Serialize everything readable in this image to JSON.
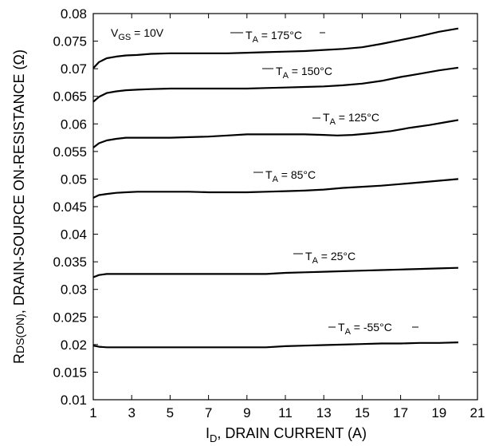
{
  "chart_data": {
    "type": "line",
    "xlabel": {
      "main": "I",
      "sub": "D",
      "rest": ", DRAIN CURRENT (A)"
    },
    "ylabel": {
      "main": "R",
      "sub": "DS(ON)",
      "rest": ", DRAIN-SOURCE ON-RESISTANCE (Ω)"
    },
    "xlim": [
      1,
      21
    ],
    "ylim": [
      0.01,
      0.08
    ],
    "xticks": [
      "1",
      "3",
      "5",
      "7",
      "9",
      "11",
      "13",
      "15",
      "17",
      "19",
      "21"
    ],
    "yticks": [
      "0.01",
      "0.015",
      "0.02",
      "0.025",
      "0.03",
      "0.035",
      "0.04",
      "0.045",
      "0.05",
      "0.055",
      "0.06",
      "0.065",
      "0.07",
      "0.075",
      "0.08"
    ],
    "condition": {
      "main": "V",
      "sub": "GS",
      "rest": " = 10V"
    },
    "grid": false,
    "series": [
      {
        "label": {
          "main": "T",
          "sub": "A",
          "rest": " = 175°C"
        },
        "x": [
          1,
          1.3,
          1.7,
          2.2,
          2.7,
          3.3,
          4,
          5,
          6,
          7,
          8,
          9,
          10,
          11,
          12,
          13,
          14,
          15,
          16,
          17,
          18,
          19,
          20
        ],
        "y": [
          0.0701,
          0.0712,
          0.0719,
          0.0722,
          0.0724,
          0.0725,
          0.0727,
          0.0728,
          0.0728,
          0.0728,
          0.0728,
          0.0729,
          0.073,
          0.0731,
          0.0732,
          0.0734,
          0.0736,
          0.0739,
          0.0745,
          0.0752,
          0.0759,
          0.0767,
          0.0773
        ]
      },
      {
        "label": {
          "main": "T",
          "sub": "A",
          "rest": " = 150°C"
        },
        "x": [
          1,
          1.3,
          1.7,
          2.2,
          2.7,
          3.3,
          4,
          5,
          6,
          7,
          8,
          9,
          10,
          11,
          12,
          13,
          14,
          15,
          16,
          17,
          18,
          19,
          20
        ],
        "y": [
          0.064,
          0.0649,
          0.0656,
          0.0659,
          0.0661,
          0.0662,
          0.0663,
          0.0664,
          0.0664,
          0.0664,
          0.0664,
          0.0664,
          0.0665,
          0.0666,
          0.0667,
          0.0668,
          0.067,
          0.0673,
          0.0678,
          0.0685,
          0.0691,
          0.0697,
          0.0702
        ]
      },
      {
        "label": {
          "main": "T",
          "sub": "A",
          "rest": " = 125°C"
        },
        "x": [
          1,
          1.3,
          1.7,
          2.2,
          2.7,
          3.3,
          4,
          5,
          6,
          7,
          8,
          9,
          10,
          11,
          12,
          13,
          13.7,
          14.5,
          15.5,
          16.5,
          17.5,
          18.5,
          19.5,
          20
        ],
        "y": [
          0.0557,
          0.0565,
          0.057,
          0.0573,
          0.0575,
          0.0575,
          0.0575,
          0.0575,
          0.0576,
          0.0577,
          0.0579,
          0.0581,
          0.0581,
          0.0581,
          0.0581,
          0.058,
          0.0579,
          0.058,
          0.0583,
          0.0587,
          0.0593,
          0.0598,
          0.0604,
          0.0607
        ]
      },
      {
        "label": {
          "main": "T",
          "sub": "A",
          "rest": " = 85°C"
        },
        "x": [
          1,
          1.3,
          1.7,
          2.2,
          2.7,
          3.3,
          4,
          5,
          6,
          7,
          8,
          9,
          10,
          11,
          12,
          13,
          14,
          15,
          16,
          17,
          18,
          19,
          20
        ],
        "y": [
          0.0466,
          0.0471,
          0.0473,
          0.0475,
          0.0476,
          0.0477,
          0.0477,
          0.0477,
          0.0477,
          0.0476,
          0.0476,
          0.0476,
          0.0477,
          0.0478,
          0.0479,
          0.0481,
          0.0484,
          0.0486,
          0.0488,
          0.0491,
          0.0494,
          0.0497,
          0.05
        ]
      },
      {
        "label": {
          "main": "T",
          "sub": "A",
          "rest": " = 25°C"
        },
        "x": [
          1,
          1.3,
          1.7,
          2.2,
          2.7,
          3.3,
          4,
          5,
          6,
          7,
          8,
          9,
          10,
          11,
          12,
          13,
          14,
          15,
          16,
          17,
          18,
          19,
          20
        ],
        "y": [
          0.0322,
          0.0326,
          0.0328,
          0.0328,
          0.0328,
          0.0328,
          0.0328,
          0.0328,
          0.0328,
          0.0328,
          0.0328,
          0.0328,
          0.0328,
          0.033,
          0.0331,
          0.0332,
          0.0333,
          0.0334,
          0.0335,
          0.0336,
          0.0337,
          0.0338,
          0.0339
        ]
      },
      {
        "label": {
          "main": "T",
          "sub": "A",
          "rest": " = -55°C"
        },
        "x": [
          1,
          1.3,
          1.7,
          2.2,
          2.7,
          3.3,
          4,
          5,
          6,
          7,
          8,
          9,
          10,
          11,
          12,
          13,
          14,
          15,
          16,
          17,
          18,
          19,
          20
        ],
        "y": [
          0.0198,
          0.0196,
          0.0195,
          0.0195,
          0.0195,
          0.0195,
          0.0195,
          0.0195,
          0.0195,
          0.0195,
          0.0195,
          0.0195,
          0.0195,
          0.0197,
          0.0198,
          0.0199,
          0.02,
          0.0201,
          0.0202,
          0.0202,
          0.0203,
          0.0203,
          0.0204
        ]
      }
    ]
  }
}
